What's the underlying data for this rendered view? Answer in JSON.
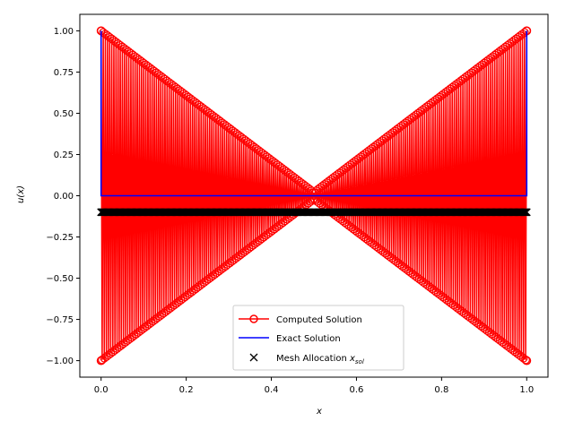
{
  "chart_data": {
    "type": "line",
    "title": "",
    "xlabel": "x",
    "ylabel": "u(x)",
    "xlim": [
      -0.05,
      1.05
    ],
    "ylim": [
      -1.1,
      1.1
    ],
    "xticks": [
      0.0,
      0.2,
      0.4,
      0.6,
      0.8,
      1.0
    ],
    "xtick_labels": [
      "0.0",
      "0.2",
      "0.4",
      "0.6",
      "0.8",
      "1.0"
    ],
    "yticks": [
      -1.0,
      -0.75,
      -0.5,
      -0.25,
      0.0,
      0.25,
      0.5,
      0.75,
      1.0
    ],
    "ytick_labels": [
      "−1.00",
      "−0.75",
      "−0.50",
      "−0.25",
      "0.00",
      "0.25",
      "0.50",
      "0.75",
      "1.00"
    ],
    "grid": false,
    "legend_position": "bottom-center",
    "series": [
      {
        "name": "Computed Solution",
        "kind": "oscillating line with circle markers",
        "color": "#ff0000",
        "envelope": {
          "x": [
            0.0,
            0.5,
            1.0
          ],
          "y_upper": [
            1.0,
            0.02,
            1.0
          ],
          "y_lower": [
            -1.0,
            -0.02,
            -1.0
          ]
        },
        "endpoints": [
          {
            "x": 0.0,
            "y": 1.0
          },
          {
            "x": 0.0,
            "y": -1.0
          },
          {
            "x": 1.0,
            "y": 1.0
          },
          {
            "x": 1.0,
            "y": -1.0
          }
        ]
      },
      {
        "name": "Exact Solution",
        "kind": "line",
        "color": "#0000ff",
        "x": [
          0.0,
          0.0,
          1.0,
          1.0
        ],
        "y": [
          1.0,
          0.0,
          0.0,
          1.0
        ]
      },
      {
        "name": "Mesh Allocation x_sol",
        "legend_label": "Mesh Allocation ",
        "legend_sym": "x",
        "legend_sub": "sol",
        "kind": "scatter x markers",
        "color": "#000000",
        "y": -0.1,
        "x_range": [
          0.0,
          1.0
        ]
      }
    ]
  },
  "colors": {
    "computed": "#ff0000",
    "exact": "#0000ff",
    "mesh": "#000000"
  }
}
